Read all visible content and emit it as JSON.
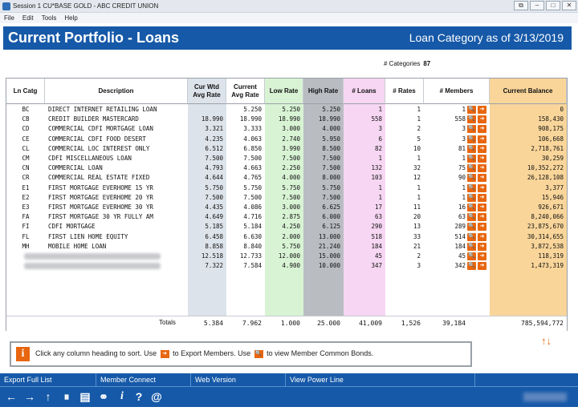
{
  "window": {
    "title": "Session 1 CU*BASE GOLD - ABC CREDIT UNION"
  },
  "menu": [
    "File",
    "Edit",
    "Tools",
    "Help"
  ],
  "header": {
    "title": "Current Portfolio - Loans",
    "category_label": "Loan Category as of 3/13/2019"
  },
  "categories": {
    "label": "# Categories",
    "value": "87"
  },
  "columns": {
    "ln_catg": "Ln Catg",
    "description": "Description",
    "cur_wtd": "Cur Wtd\nAvg Rate",
    "current_avg": "Current\nAvg Rate",
    "low": "Low Rate",
    "high": "High Rate",
    "loans": "# Loans",
    "rates": "# Rates",
    "members": "# Members",
    "balance": "Current Balance"
  },
  "rows": [
    {
      "catg": "BC",
      "desc": "DIRECT INTERNET RETAILING LOAN",
      "wtd": "",
      "avg": "5.250",
      "low": "5.250",
      "high": "5.250",
      "loans": "1",
      "rates": "1",
      "members": "1",
      "balance": "0"
    },
    {
      "catg": "CB",
      "desc": "CREDIT BUILDER MASTERCARD",
      "wtd": "18.990",
      "avg": "18.990",
      "low": "18.990",
      "high": "18.990",
      "loans": "558",
      "rates": "1",
      "members": "558",
      "balance": "158,430"
    },
    {
      "catg": "CD",
      "desc": "COMMERCIAL CDFI MORTGAGE LOAN",
      "wtd": "3.321",
      "avg": "3.333",
      "low": "3.000",
      "high": "4.000",
      "loans": "3",
      "rates": "2",
      "members": "3",
      "balance": "908,175"
    },
    {
      "catg": "CE",
      "desc": "COMMERCIAL CDFI FOOD DESERT",
      "wtd": "4.235",
      "avg": "4.063",
      "low": "2.740",
      "high": "5.950",
      "loans": "6",
      "rates": "5",
      "members": "3",
      "balance": "106,668"
    },
    {
      "catg": "CL",
      "desc": "COMMERCIAL LOC INTEREST ONLY",
      "wtd": "6.512",
      "avg": "6.850",
      "low": "3.990",
      "high": "8.500",
      "loans": "82",
      "rates": "10",
      "members": "81",
      "balance": "2,718,761"
    },
    {
      "catg": "CM",
      "desc": "CDFI MISCELLANEOUS LOAN",
      "wtd": "7.500",
      "avg": "7.500",
      "low": "7.500",
      "high": "7.500",
      "loans": "1",
      "rates": "1",
      "members": "1",
      "balance": "30,259"
    },
    {
      "catg": "CN",
      "desc": "COMMERCIAL LOAN",
      "wtd": "4.793",
      "avg": "4.663",
      "low": "2.250",
      "high": "7.500",
      "loans": "132",
      "rates": "32",
      "members": "75",
      "balance": "10,352,272"
    },
    {
      "catg": "CR",
      "desc": "COMMERCIAL REAL ESTATE FIXED",
      "wtd": "4.644",
      "avg": "4.765",
      "low": "4.000",
      "high": "8.000",
      "loans": "103",
      "rates": "12",
      "members": "90",
      "balance": "26,128,108"
    },
    {
      "catg": "E1",
      "desc": "FIRST MORTGAGE EVERHOME 15 YR",
      "wtd": "5.750",
      "avg": "5.750",
      "low": "5.750",
      "high": "5.750",
      "loans": "1",
      "rates": "1",
      "members": "1",
      "balance": "3,377"
    },
    {
      "catg": "E2",
      "desc": "FIRST MORTGAGE EVERHOME 20 YR",
      "wtd": "7.500",
      "avg": "7.500",
      "low": "7.500",
      "high": "7.500",
      "loans": "1",
      "rates": "1",
      "members": "1",
      "balance": "15,946"
    },
    {
      "catg": "E3",
      "desc": "FIRST MORTGAGE EVERHOME 30 YR",
      "wtd": "4.435",
      "avg": "4.086",
      "low": "3.000",
      "high": "6.625",
      "loans": "17",
      "rates": "11",
      "members": "16",
      "balance": "926,671"
    },
    {
      "catg": "FA",
      "desc": "FIRST MORTGAGE 30 YR FULLY AM",
      "wtd": "4.649",
      "avg": "4.716",
      "low": "2.875",
      "high": "6.000",
      "loans": "63",
      "rates": "20",
      "members": "63",
      "balance": "8,240,066"
    },
    {
      "catg": "FI",
      "desc": "CDFI MORTGAGE",
      "wtd": "5.185",
      "avg": "5.184",
      "low": "4.250",
      "high": "6.125",
      "loans": "290",
      "rates": "13",
      "members": "289",
      "balance": "23,875,670"
    },
    {
      "catg": "FL",
      "desc": "FIRST LIEN HOME EQUITY",
      "wtd": "6.458",
      "avg": "6.630",
      "low": "2.000",
      "high": "13.000",
      "loans": "518",
      "rates": "33",
      "members": "514",
      "balance": "30,314,655"
    },
    {
      "catg": "MH",
      "desc": "MOBILE HOME LOAN",
      "wtd": "8.858",
      "avg": "8.840",
      "low": "5.750",
      "high": "21.240",
      "loans": "184",
      "rates": "21",
      "members": "184",
      "balance": "3,872,538"
    },
    {
      "catg": "",
      "desc": "",
      "wtd": "12.518",
      "avg": "12.733",
      "low": "12.000",
      "high": "15.000",
      "loans": "45",
      "rates": "2",
      "members": "45",
      "balance": "118,319"
    },
    {
      "catg": "",
      "desc": "",
      "wtd": "7.322",
      "avg": "7.584",
      "low": "4.900",
      "high": "10.000",
      "loans": "347",
      "rates": "3",
      "members": "342",
      "balance": "1,473,319"
    }
  ],
  "totals": {
    "label": "Totals",
    "wtd": "5.384",
    "avg": "7.962",
    "low": "1.000",
    "high": "25.000",
    "loans": "41,009",
    "rates": "1,526",
    "members": "39,184",
    "balance": "785,594,772"
  },
  "info": {
    "part1": "Click any column heading to sort.  Use",
    "part2": "to Export Members.  Use",
    "part3": "to view Member Common Bonds."
  },
  "links": [
    "Export Full List",
    "Member Connect",
    "Web Version",
    "View Power Line"
  ],
  "colors": {
    "header_blue": "#1659a8",
    "accent_orange": "#e8660f",
    "wtd_col": "#dde3ea",
    "low_col": "#d8f3d4",
    "high_col": "#b9bdc2",
    "loans_col": "#f6d6f2",
    "balance_col": "#f9d59a"
  }
}
